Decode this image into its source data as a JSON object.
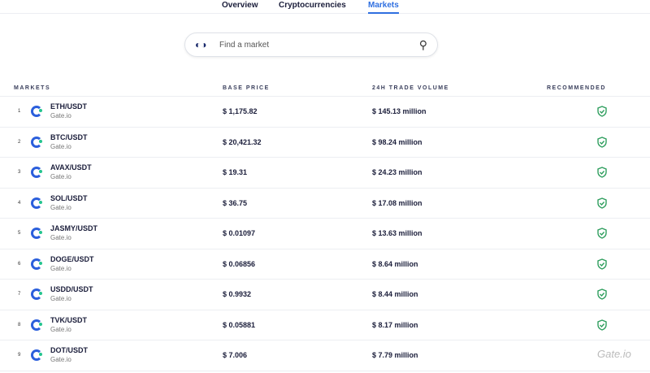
{
  "tabs": [
    {
      "label": "Overview"
    },
    {
      "label": "Cryptocurrencies"
    },
    {
      "label": "Markets"
    }
  ],
  "search": {
    "placeholder": "Find a market",
    "icon": "search-icon"
  },
  "table": {
    "headers": {
      "markets": "MARKETS",
      "base_price": "BASE PRICE",
      "volume": "24H TRADE VOLUME",
      "recommended": "RECOMMENDED"
    },
    "rows": [
      {
        "rank": "1",
        "pair": "ETH/USDT",
        "exchange": "Gate.io",
        "price": "$ 1,175.82",
        "volume": "$ 145.13 million",
        "recommended": true
      },
      {
        "rank": "2",
        "pair": "BTC/USDT",
        "exchange": "Gate.io",
        "price": "$ 20,421.32",
        "volume": "$ 98.24 million",
        "recommended": true
      },
      {
        "rank": "3",
        "pair": "AVAX/USDT",
        "exchange": "Gate.io",
        "price": "$ 19.31",
        "volume": "$ 24.23 million",
        "recommended": true
      },
      {
        "rank": "4",
        "pair": "SOL/USDT",
        "exchange": "Gate.io",
        "price": "$ 36.75",
        "volume": "$ 17.08 million",
        "recommended": true
      },
      {
        "rank": "5",
        "pair": "JASMY/USDT",
        "exchange": "Gate.io",
        "price": "$ 0.01097",
        "volume": "$ 13.63 million",
        "recommended": true
      },
      {
        "rank": "6",
        "pair": "DOGE/USDT",
        "exchange": "Gate.io",
        "price": "$ 0.06856",
        "volume": "$ 8.64 million",
        "recommended": true
      },
      {
        "rank": "7",
        "pair": "USDD/USDT",
        "exchange": "Gate.io",
        "price": "$ 0.9932",
        "volume": "$ 8.44 million",
        "recommended": true
      },
      {
        "rank": "8",
        "pair": "TVK/USDT",
        "exchange": "Gate.io",
        "price": "$ 0.05881",
        "volume": "$ 8.17 million",
        "recommended": true
      },
      {
        "rank": "9",
        "pair": "DOT/USDT",
        "exchange": "Gate.io",
        "price": "$ 7.006",
        "volume": "$ 7.79 million",
        "recommended": false
      }
    ]
  },
  "watermark": "Gate.io",
  "colors": {
    "accent": "#2f6fe0",
    "shield": "#2f9e5e"
  }
}
